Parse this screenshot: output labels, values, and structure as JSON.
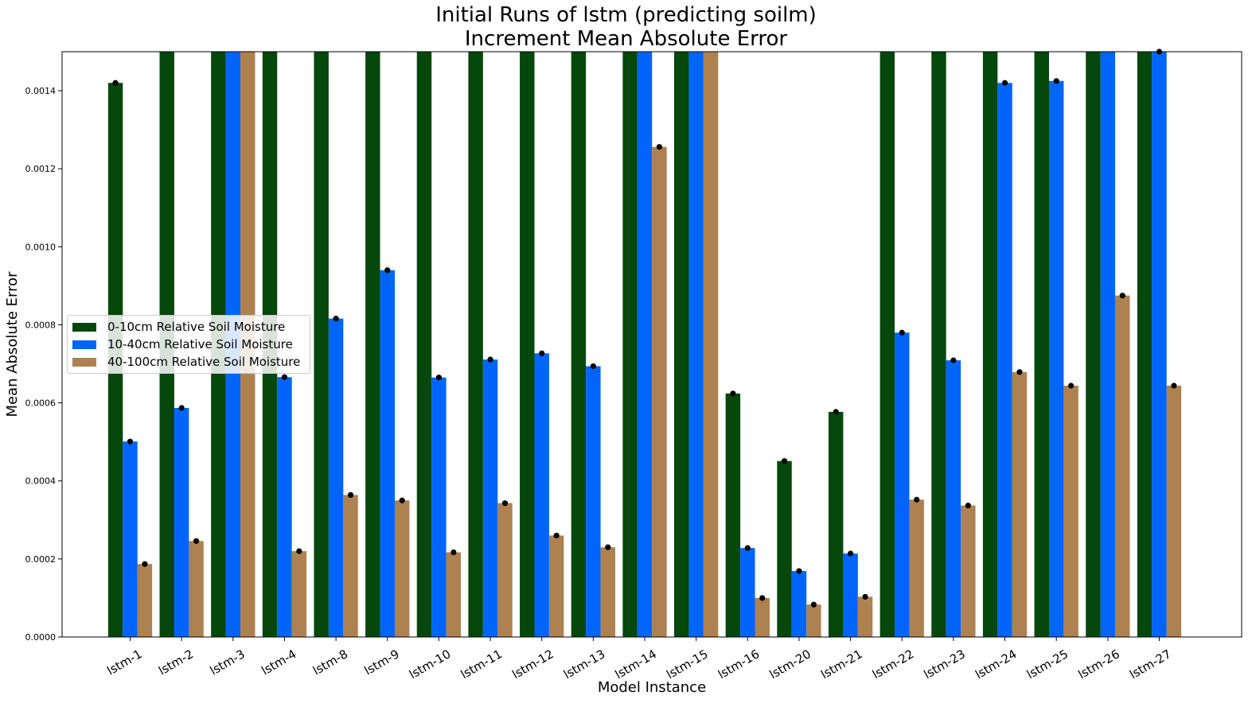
{
  "chart_data": {
    "type": "bar",
    "title": "Initial Runs of lstm (predicting soilm)",
    "subtitle": "Increment Mean Absolute Error",
    "xlabel": "Model Instance",
    "ylabel": "Mean Absolute Error",
    "ylim": [
      0,
      0.0015
    ],
    "yticks": [
      0.0,
      0.0002,
      0.0004,
      0.0006,
      0.0008,
      0.001,
      0.0012,
      0.0014
    ],
    "ytick_labels": [
      "0.0000",
      "0.0002",
      "0.0004",
      "0.0006",
      "0.0008",
      "0.0010",
      "0.0012",
      "0.0014"
    ],
    "grid": false,
    "legend_position": "center-left",
    "categories": [
      "lstm-1",
      "lstm-2",
      "lstm-3",
      "lstm-4",
      "lstm-8",
      "lstm-9",
      "lstm-10",
      "lstm-11",
      "lstm-12",
      "lstm-13",
      "lstm-14",
      "lstm-15",
      "lstm-16",
      "lstm-20",
      "lstm-21",
      "lstm-22",
      "lstm-23",
      "lstm-24",
      "lstm-25",
      "lstm-26",
      "lstm-27"
    ],
    "series": [
      {
        "name": "0-10cm Relative Soil Moisture",
        "color": "#06470c",
        "values": [
          0.00142,
          0.0016,
          0.0016,
          0.0016,
          0.0016,
          0.0016,
          0.0016,
          0.0016,
          0.0016,
          0.0016,
          0.0016,
          0.0016,
          0.000624,
          0.000451,
          0.000577,
          0.0016,
          0.0016,
          0.0016,
          0.0016,
          0.0016,
          0.0016
        ]
      },
      {
        "name": "10-40cm Relative Soil Moisture",
        "color": "#0165fc",
        "values": [
          0.000501,
          0.000587,
          0.0016,
          0.000666,
          0.000816,
          0.00094,
          0.000665,
          0.000711,
          0.000727,
          0.000694,
          0.0016,
          0.0016,
          0.000228,
          0.000169,
          0.000214,
          0.00078,
          0.000709,
          0.00142,
          0.001425,
          0.0016,
          0.0015
        ]
      },
      {
        "name": "40-100cm Relative Soil Moisture",
        "color": "#ad8150",
        "values": [
          0.000187,
          0.000246,
          0.0016,
          0.00022,
          0.000364,
          0.00035,
          0.000217,
          0.000343,
          0.00026,
          0.00023,
          0.001256,
          0.0016,
          0.0001,
          8.3e-05,
          0.000103,
          0.000352,
          0.000337,
          0.000679,
          0.000644,
          0.000875,
          0.000644
        ]
      }
    ]
  }
}
